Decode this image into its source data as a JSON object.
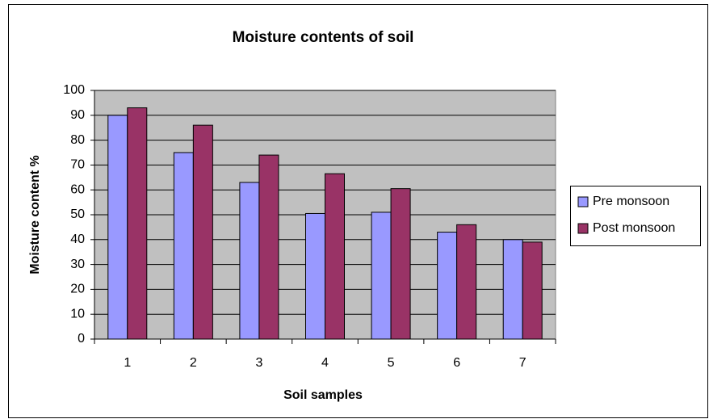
{
  "chart_data": {
    "type": "bar",
    "title": "Moisture contents of soil",
    "x_label": "Soil samples",
    "y_label": "Moisture content %",
    "categories": [
      "1",
      "2",
      "3",
      "4",
      "5",
      "6",
      "7"
    ],
    "series": [
      {
        "name": "Pre monsoon",
        "color": "#9999ff",
        "values": [
          90,
          75,
          63,
          50.5,
          51,
          43,
          40
        ]
      },
      {
        "name": "Post monsoon",
        "color": "#993366",
        "values": [
          93,
          86,
          74,
          66.5,
          60.5,
          46,
          39
        ]
      }
    ],
    "ylim": [
      0,
      100
    ],
    "yticks": [
      0,
      10,
      20,
      30,
      40,
      50,
      60,
      70,
      80,
      90,
      100
    ],
    "grid": true,
    "legend": "right"
  }
}
